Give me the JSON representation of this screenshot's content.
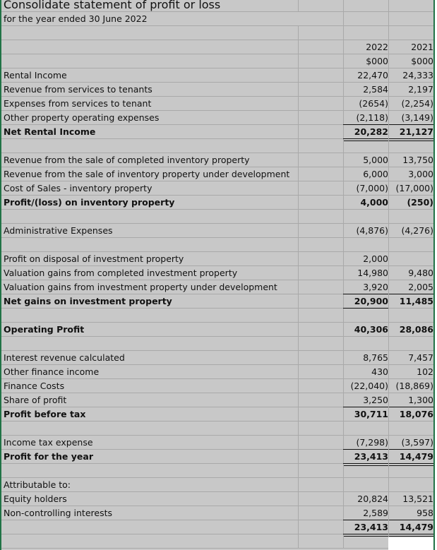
{
  "sheet": {
    "title": "Consolidate statement of profit or loss",
    "subtitle": "for the year ended 30 June 2022",
    "column_headers": {
      "year_current": "2022",
      "year_prior": "2021",
      "unit_current": "$000",
      "unit_prior": "$000"
    },
    "rows": [
      {
        "label": "Rental Income",
        "v2022": "22,470",
        "v2021": "24,333",
        "bold": false
      },
      {
        "label": "Revenue from services to tenants",
        "v2022": "2,584",
        "v2021": "2,197",
        "bold": false
      },
      {
        "label": "Expenses from services to tenant",
        "v2022": "(2654)",
        "v2021": "(2,254)",
        "bold": false
      },
      {
        "label": "Other property operating expenses",
        "v2022": "(2,118)",
        "v2021": "(3,149)",
        "bold": false
      },
      {
        "label": "Net Rental Income",
        "v2022": "20,282",
        "v2021": "21,127",
        "bold": true
      },
      {
        "label": "Revenue from the sale of completed inventory property",
        "v2022": "5,000",
        "v2021": "13,750",
        "bold": false
      },
      {
        "label": "Revenue from the sale of inventory property under development",
        "v2022": "6,000",
        "v2021": "3,000",
        "bold": false
      },
      {
        "label": "Cost of Sales - inventory property",
        "v2022": "(7,000)",
        "v2021": "(17,000)",
        "bold": false
      },
      {
        "label": "Profit/(loss) on inventory property",
        "v2022": "4,000",
        "v2021": "(250)",
        "bold": true
      },
      {
        "label": "Administrative Expenses",
        "v2022": "(4,876)",
        "v2021": "(4,276)",
        "bold": false
      },
      {
        "label": "Profit on disposal of investment property",
        "v2022": "2,000",
        "v2021": "",
        "bold": false
      },
      {
        "label": "Valuation gains from completed investment property",
        "v2022": "14,980",
        "v2021": "9,480",
        "bold": false
      },
      {
        "label": "Valuation gains from investment property under development",
        "v2022": "3,920",
        "v2021": "2,005",
        "bold": false
      },
      {
        "label": "Net gains on investment property",
        "v2022": "20,900",
        "v2021": "11,485",
        "bold": true
      },
      {
        "label": "Operating Profit",
        "v2022": "40,306",
        "v2021": "28,086",
        "bold": true
      },
      {
        "label": "Interest revenue calculated",
        "v2022": "8,765",
        "v2021": "7,457",
        "bold": false
      },
      {
        "label": "Other finance income",
        "v2022": "430",
        "v2021": "102",
        "bold": false
      },
      {
        "label": "Finance Costs",
        "v2022": "(22,040)",
        "v2021": "(18,869)",
        "bold": false
      },
      {
        "label": "Share of profit",
        "v2022": "3,250",
        "v2021": "1,300",
        "bold": false
      },
      {
        "label": "Profit before tax",
        "v2022": "30,711",
        "v2021": "18,076",
        "bold": true
      },
      {
        "label": "Income tax expense",
        "v2022": "(7,298)",
        "v2021": "(3,597)",
        "bold": false
      },
      {
        "label": "Profit for the year",
        "v2022": "23,413",
        "v2021": "14,479",
        "bold": true
      },
      {
        "label": "Attributable to:",
        "v2022": "",
        "v2021": "",
        "bold": false
      },
      {
        "label": "Equity holders",
        "v2022": "20,824",
        "v2021": "13,521",
        "bold": false
      },
      {
        "label": "Non-controlling interests",
        "v2022": "2,589",
        "v2021": "958",
        "bold": false
      },
      {
        "label": "",
        "v2022": "23,413",
        "v2021": "14,479",
        "bold": true
      }
    ]
  }
}
